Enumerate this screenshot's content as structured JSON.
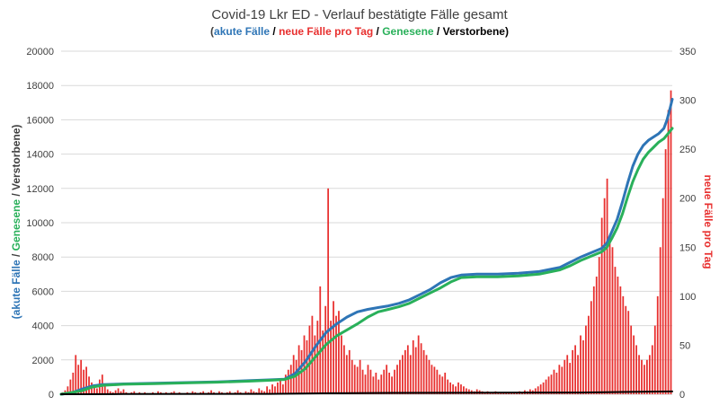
{
  "chart_data": {
    "type": "line",
    "title": "Covid-19 Lkr ED - Verlauf bestätigte Fälle gesamt",
    "subtitle": {
      "open": "(",
      "part1": "akute Fälle",
      "sep1": " / ",
      "part2": "neue Fälle pro Tag",
      "sep2": " / ",
      "part3": "Genesene",
      "sep3": " / ",
      "part4": "Verstorbene",
      "close": ")"
    },
    "ylabel_left": {
      "open": "(",
      "part1": "akute Fälle",
      "sep1": " / ",
      "part2": "Genesene",
      "sep2": " / ",
      "part3": "Verstorbene",
      "close": ")"
    },
    "ylabel_right": "neue Fälle pro Tag",
    "y_left": {
      "min": 0,
      "max": 20000,
      "ticks": [
        "0",
        "2000",
        "4000",
        "6000",
        "8000",
        "10000",
        "12000",
        "14000",
        "16000",
        "18000",
        "20000"
      ]
    },
    "y_right": {
      "min": 0,
      "max": 350,
      "ticks": [
        "0",
        "50",
        "100",
        "150",
        "200",
        "250",
        "300",
        "350"
      ]
    },
    "grid": true,
    "colors": {
      "akute": "#2e75b6",
      "neue": "#e8302f",
      "genesene": "#29b05a",
      "verstorbene": "#000000",
      "grid": "#d9d9d9",
      "label_right": "#e8302f",
      "label_text": "#404040"
    },
    "x_days": 365,
    "series": [
      {
        "name": "akute Fälle",
        "axis": "left",
        "points": [
          [
            0,
            0
          ],
          [
            10,
            80
          ],
          [
            20,
            300
          ],
          [
            30,
            480
          ],
          [
            40,
            560
          ],
          [
            60,
            600
          ],
          [
            90,
            640
          ],
          [
            120,
            680
          ],
          [
            150,
            720
          ],
          [
            180,
            790
          ],
          [
            200,
            840
          ],
          [
            215,
            880
          ],
          [
            225,
            1200
          ],
          [
            235,
            1900
          ],
          [
            245,
            2800
          ],
          [
            255,
            3600
          ],
          [
            265,
            4100
          ],
          [
            275,
            4500
          ],
          [
            285,
            4800
          ],
          [
            295,
            4950
          ],
          [
            305,
            5050
          ],
          [
            315,
            5150
          ],
          [
            325,
            5300
          ],
          [
            335,
            5500
          ],
          [
            345,
            5800
          ],
          [
            355,
            6100
          ],
          [
            365,
            6500
          ],
          [
            375,
            6800
          ],
          [
            385,
            6950
          ],
          [
            400,
            7000
          ],
          [
            420,
            7000
          ],
          [
            440,
            7050
          ],
          [
            460,
            7150
          ],
          [
            480,
            7400
          ],
          [
            490,
            7700
          ],
          [
            500,
            8000
          ],
          [
            510,
            8250
          ],
          [
            520,
            8500
          ],
          [
            525,
            8800
          ],
          [
            530,
            9500
          ],
          [
            535,
            10200
          ],
          [
            540,
            11200
          ],
          [
            545,
            12300
          ],
          [
            550,
            13300
          ],
          [
            555,
            14000
          ],
          [
            560,
            14500
          ],
          [
            565,
            14800
          ],
          [
            570,
            15000
          ],
          [
            575,
            15200
          ],
          [
            580,
            15500
          ],
          [
            583,
            16000
          ],
          [
            586,
            16700
          ],
          [
            588,
            17200
          ]
        ]
      },
      {
        "name": "Genesene",
        "axis": "left",
        "points": [
          [
            0,
            0
          ],
          [
            20,
            200
          ],
          [
            30,
            420
          ],
          [
            40,
            520
          ],
          [
            60,
            580
          ],
          [
            90,
            620
          ],
          [
            120,
            660
          ],
          [
            150,
            700
          ],
          [
            180,
            760
          ],
          [
            200,
            810
          ],
          [
            215,
            860
          ],
          [
            225,
            1050
          ],
          [
            235,
            1500
          ],
          [
            245,
            2200
          ],
          [
            255,
            2900
          ],
          [
            265,
            3400
          ],
          [
            275,
            3750
          ],
          [
            285,
            4100
          ],
          [
            295,
            4500
          ],
          [
            305,
            4800
          ],
          [
            315,
            4950
          ],
          [
            325,
            5100
          ],
          [
            335,
            5300
          ],
          [
            345,
            5600
          ],
          [
            355,
            5900
          ],
          [
            365,
            6200
          ],
          [
            375,
            6550
          ],
          [
            385,
            6800
          ],
          [
            400,
            6850
          ],
          [
            420,
            6850
          ],
          [
            440,
            6900
          ],
          [
            460,
            7000
          ],
          [
            480,
            7250
          ],
          [
            490,
            7500
          ],
          [
            500,
            7800
          ],
          [
            510,
            8050
          ],
          [
            520,
            8300
          ],
          [
            525,
            8550
          ],
          [
            530,
            9100
          ],
          [
            535,
            9700
          ],
          [
            540,
            10500
          ],
          [
            545,
            11500
          ],
          [
            550,
            12400
          ],
          [
            555,
            13100
          ],
          [
            560,
            13700
          ],
          [
            565,
            14100
          ],
          [
            570,
            14400
          ],
          [
            575,
            14700
          ],
          [
            580,
            14900
          ],
          [
            584,
            15200
          ],
          [
            588,
            15500
          ]
        ]
      },
      {
        "name": "Verstorbene",
        "axis": "left",
        "points": [
          [
            0,
            0
          ],
          [
            60,
            10
          ],
          [
            200,
            20
          ],
          [
            260,
            60
          ],
          [
            320,
            80
          ],
          [
            420,
            90
          ],
          [
            500,
            100
          ],
          [
            540,
            130
          ],
          [
            588,
            160
          ]
        ]
      }
    ],
    "bar_series": {
      "name": "neue Fälle pro Tag",
      "axis": "right",
      "values": [
        2,
        4,
        8,
        15,
        22,
        40,
        30,
        35,
        25,
        28,
        18,
        12,
        10,
        6,
        15,
        20,
        8,
        5,
        3,
        2,
        4,
        6,
        3,
        5,
        2,
        1,
        2,
        3,
        1,
        2,
        1,
        2,
        1,
        1,
        2,
        1,
        3,
        2,
        1,
        2,
        1,
        2,
        3,
        1,
        2,
        1,
        1,
        2,
        1,
        3,
        2,
        1,
        2,
        3,
        1,
        2,
        4,
        2,
        1,
        3,
        2,
        1,
        2,
        3,
        1,
        2,
        4,
        2,
        1,
        3,
        2,
        5,
        3,
        2,
        6,
        4,
        3,
        8,
        5,
        10,
        8,
        12,
        15,
        10,
        20,
        25,
        30,
        40,
        35,
        50,
        45,
        60,
        55,
        70,
        80,
        60,
        75,
        110,
        65,
        90,
        210,
        75,
        95,
        80,
        85,
        60,
        50,
        40,
        45,
        35,
        30,
        28,
        35,
        25,
        20,
        30,
        25,
        18,
        22,
        15,
        20,
        25,
        30,
        22,
        18,
        25,
        30,
        35,
        40,
        45,
        50,
        40,
        55,
        48,
        60,
        52,
        45,
        40,
        35,
        30,
        28,
        25,
        20,
        18,
        22,
        15,
        12,
        10,
        8,
        12,
        10,
        8,
        6,
        5,
        4,
        3,
        5,
        4,
        3,
        2,
        3,
        2,
        2,
        3,
        1,
        2,
        2,
        1,
        2,
        1,
        1,
        2,
        3,
        2,
        4,
        3,
        5,
        4,
        6,
        8,
        10,
        12,
        15,
        18,
        20,
        25,
        22,
        30,
        28,
        35,
        40,
        32,
        45,
        50,
        40,
        60,
        55,
        70,
        80,
        95,
        110,
        120,
        140,
        180,
        200,
        220,
        160,
        150,
        130,
        120,
        110,
        100,
        90,
        85,
        70,
        60,
        50,
        40,
        35,
        30,
        35,
        40,
        50,
        70,
        100,
        150,
        200,
        250,
        290,
        310
      ]
    }
  }
}
